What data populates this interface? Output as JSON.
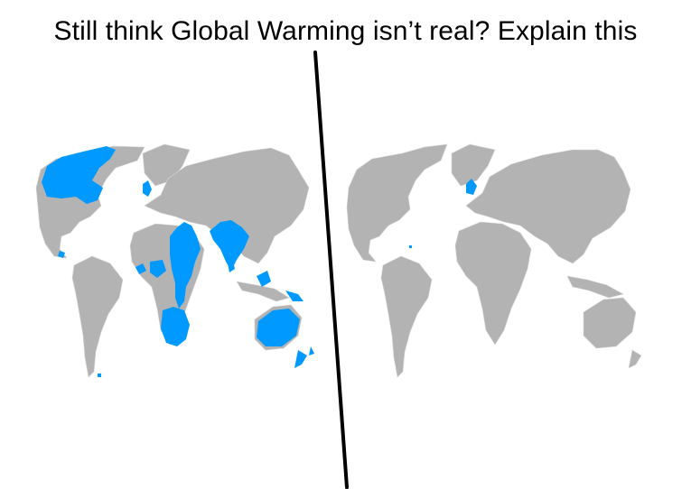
{
  "caption": "Still think Global Warming isn’t real? Explain this",
  "colors": {
    "land": "#b3b3b3",
    "highlight": "#0099ff",
    "divider": "#000000",
    "background": "#ffffff"
  },
  "panels": [
    {
      "name": "left-world-map",
      "highlighted_regions": [
        "canada",
        "british-isles",
        "east-africa",
        "southern-africa",
        "south-asia",
        "sri-lanka",
        "australia",
        "new-zealand",
        "papua-new-guinea",
        "caribbean-islands",
        "west-africa-coast",
        "falklands",
        "malaysia-borneo"
      ]
    },
    {
      "name": "right-world-map",
      "highlighted_regions": [
        "british-isles",
        "caribbean-islands"
      ]
    }
  ]
}
